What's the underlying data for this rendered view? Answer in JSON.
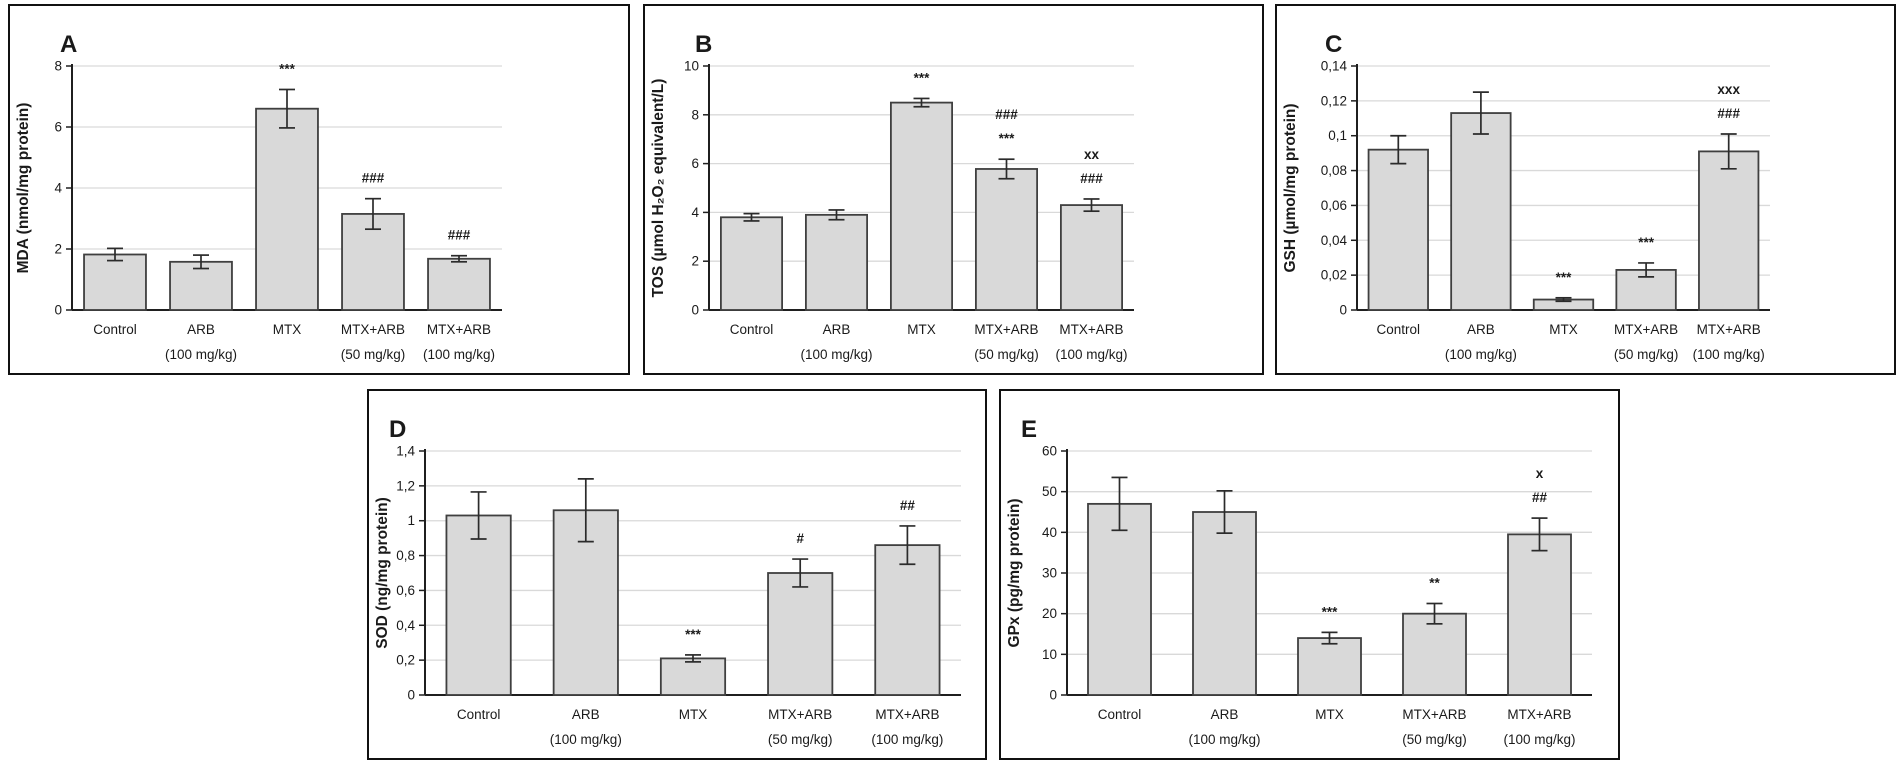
{
  "figure": {
    "background": "#ffffff",
    "bar_fill": "#d9d9d9",
    "bar_stroke": "#3f3f3f",
    "error_color": "#2b2b2b",
    "grid_color": "#d9d9d9",
    "axis_color": "#1f1f1f",
    "panel_border": "#111111",
    "text_color": "#1a1a1a"
  },
  "chart_data": [
    {
      "panel": "A",
      "type": "bar",
      "title": "",
      "xlabel": "",
      "ylabel": "MDA (nmol/mg protein)",
      "ylim": [
        0,
        8
      ],
      "grid": true,
      "legend": null,
      "yticks": {
        "values": [
          0,
          2,
          4,
          6,
          8
        ],
        "labels": [
          "0",
          "2",
          "4",
          "6",
          "8"
        ]
      },
      "categories": [
        {
          "name": "Control",
          "dose": ""
        },
        {
          "name": "ARB",
          "dose": "(100 mg/kg)"
        },
        {
          "name": "MTX",
          "dose": ""
        },
        {
          "name": "MTX+ARB",
          "dose": "(50 mg/kg)"
        },
        {
          "name": "MTX+ARB",
          "dose": "(100 mg/kg)"
        }
      ],
      "values": [
        1.82,
        1.58,
        6.6,
        3.15,
        1.68
      ],
      "errors": [
        0.2,
        0.22,
        0.63,
        0.5,
        0.1
      ],
      "annotations": [
        [],
        [],
        [
          "***"
        ],
        [
          "###"
        ],
        [
          "###"
        ]
      ]
    },
    {
      "panel": "B",
      "type": "bar",
      "title": "",
      "xlabel": "",
      "ylabel": "TOS (µmol H₂O₂ equivalent/L)",
      "ylim": [
        0,
        10
      ],
      "grid": true,
      "legend": null,
      "yticks": {
        "values": [
          0,
          2,
          4,
          6,
          8,
          10
        ],
        "labels": [
          "0",
          "2",
          "4",
          "6",
          "8",
          "10"
        ]
      },
      "categories": [
        {
          "name": "Control",
          "dose": ""
        },
        {
          "name": "ARB",
          "dose": "(100 mg/kg)"
        },
        {
          "name": "MTX",
          "dose": ""
        },
        {
          "name": "MTX+ARB",
          "dose": "(50 mg/kg)"
        },
        {
          "name": "MTX+ARB",
          "dose": "(100 mg/kg)"
        }
      ],
      "values": [
        3.8,
        3.9,
        8.5,
        5.78,
        4.3
      ],
      "errors": [
        0.15,
        0.2,
        0.17,
        0.4,
        0.25
      ],
      "annotations": [
        [],
        [],
        [
          "***"
        ],
        [
          "###",
          "***"
        ],
        [
          "xx",
          "###"
        ]
      ]
    },
    {
      "panel": "C",
      "type": "bar",
      "title": "",
      "xlabel": "",
      "ylabel": "GSH (µmol/mg protein)",
      "ylim": [
        0,
        0.14
      ],
      "grid": true,
      "legend": null,
      "yticks": {
        "values": [
          0,
          0.02,
          0.04,
          0.06,
          0.08,
          0.1,
          0.12,
          0.14
        ],
        "labels": [
          "0",
          "0,02",
          "0,04",
          "0,06",
          "0,08",
          "0,1",
          "0,12",
          "0,14"
        ]
      },
      "categories": [
        {
          "name": "Control",
          "dose": ""
        },
        {
          "name": "ARB",
          "dose": "(100 mg/kg)"
        },
        {
          "name": "MTX",
          "dose": ""
        },
        {
          "name": "MTX+ARB",
          "dose": "(50 mg/kg)"
        },
        {
          "name": "MTX+ARB",
          "dose": "(100 mg/kg)"
        }
      ],
      "values": [
        0.092,
        0.113,
        0.006,
        0.023,
        0.091
      ],
      "errors": [
        0.008,
        0.012,
        0.001,
        0.004,
        0.01
      ],
      "annotations": [
        [],
        [],
        [
          "***"
        ],
        [
          "***"
        ],
        [
          "xxx",
          "###"
        ]
      ]
    },
    {
      "panel": "D",
      "type": "bar",
      "title": "",
      "xlabel": "",
      "ylabel": "SOD (ng/mg protein)",
      "ylim": [
        0,
        1.4
      ],
      "grid": true,
      "legend": null,
      "yticks": {
        "values": [
          0,
          0.2,
          0.4,
          0.6,
          0.8,
          1,
          1.2,
          1.4
        ],
        "labels": [
          "0",
          "0,2",
          "0,4",
          "0,6",
          "0,8",
          "1",
          "1,2",
          "1,4"
        ]
      },
      "categories": [
        {
          "name": "Control",
          "dose": ""
        },
        {
          "name": "ARB",
          "dose": "(100 mg/kg)"
        },
        {
          "name": "MTX",
          "dose": ""
        },
        {
          "name": "MTX+ARB",
          "dose": "(50 mg/kg)"
        },
        {
          "name": "MTX+ARB",
          "dose": "(100 mg/kg)"
        }
      ],
      "values": [
        1.03,
        1.06,
        0.21,
        0.7,
        0.86
      ],
      "errors": [
        0.135,
        0.18,
        0.02,
        0.08,
        0.11
      ],
      "annotations": [
        [],
        [],
        [
          "***"
        ],
        [
          "#"
        ],
        [
          "##"
        ]
      ]
    },
    {
      "panel": "E",
      "type": "bar",
      "title": "",
      "xlabel": "",
      "ylabel": "GPx (pg/mg protein)",
      "ylim": [
        0,
        60
      ],
      "grid": true,
      "legend": null,
      "yticks": {
        "values": [
          0,
          10,
          20,
          30,
          40,
          50,
          60
        ],
        "labels": [
          "0",
          "10",
          "20",
          "30",
          "40",
          "50",
          "60"
        ]
      },
      "categories": [
        {
          "name": "Control",
          "dose": ""
        },
        {
          "name": "ARB",
          "dose": "(100 mg/kg)"
        },
        {
          "name": "MTX",
          "dose": ""
        },
        {
          "name": "MTX+ARB",
          "dose": "(50 mg/kg)"
        },
        {
          "name": "MTX+ARB",
          "dose": "(100 mg/kg)"
        }
      ],
      "values": [
        47,
        45,
        14,
        20,
        39.5
      ],
      "errors": [
        6.5,
        5.2,
        1.4,
        2.5,
        4
      ],
      "annotations": [
        [],
        [],
        [
          "***"
        ],
        [
          "**"
        ],
        [
          "x",
          "##"
        ]
      ]
    }
  ]
}
